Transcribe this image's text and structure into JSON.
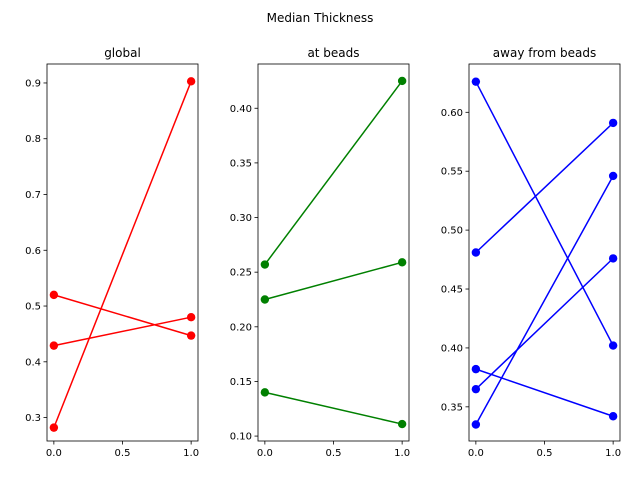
{
  "figure": {
    "suptitle": "Median Thickness"
  },
  "chart_data": [
    {
      "type": "line",
      "title": "global",
      "color": "#ff0000",
      "xlim": [
        -0.05,
        1.05
      ],
      "ylim": [
        0.258,
        0.934
      ],
      "xticks": [
        0.0,
        0.5,
        1.0
      ],
      "xtick_labels": [
        "0.0",
        "0.5",
        "1.0"
      ],
      "yticks": [
        0.3,
        0.4,
        0.5,
        0.6,
        0.7,
        0.8,
        0.9
      ],
      "ytick_labels": [
        "0.3",
        "0.4",
        "0.5",
        "0.6",
        "0.7",
        "0.8",
        "0.9"
      ],
      "series": [
        {
          "x": [
            0,
            1
          ],
          "y": [
            0.52,
            0.447
          ]
        },
        {
          "x": [
            0,
            1
          ],
          "y": [
            0.429,
            0.48
          ]
        },
        {
          "x": [
            0,
            1
          ],
          "y": [
            0.282,
            0.903
          ]
        }
      ]
    },
    {
      "type": "line",
      "title": "at beads",
      "color": "#008000",
      "xlim": [
        -0.05,
        1.05
      ],
      "ylim": [
        0.0955,
        0.4405
      ],
      "xticks": [
        0.0,
        0.5,
        1.0
      ],
      "xtick_labels": [
        "0.0",
        "0.5",
        "1.0"
      ],
      "yticks": [
        0.1,
        0.15,
        0.2,
        0.25,
        0.3,
        0.35,
        0.4
      ],
      "ytick_labels": [
        "0.10",
        "0.15",
        "0.20",
        "0.25",
        "0.30",
        "0.35",
        "0.40"
      ],
      "series": [
        {
          "x": [
            0,
            1
          ],
          "y": [
            0.257,
            0.425
          ]
        },
        {
          "x": [
            0,
            1
          ],
          "y": [
            0.225,
            0.259
          ]
        },
        {
          "x": [
            0,
            1
          ],
          "y": [
            0.14,
            0.111
          ]
        }
      ]
    },
    {
      "type": "line",
      "title": "away from beads",
      "color": "#0000ff",
      "xlim": [
        -0.05,
        1.05
      ],
      "ylim": [
        0.321,
        0.641
      ],
      "xticks": [
        0.0,
        0.5,
        1.0
      ],
      "xtick_labels": [
        "0.0",
        "0.5",
        "1.0"
      ],
      "yticks": [
        0.35,
        0.4,
        0.45,
        0.5,
        0.55,
        0.6
      ],
      "ytick_labels": [
        "0.35",
        "0.40",
        "0.45",
        "0.50",
        "0.55",
        "0.60"
      ],
      "series": [
        {
          "x": [
            0,
            1
          ],
          "y": [
            0.626,
            0.402
          ]
        },
        {
          "x": [
            0,
            1
          ],
          "y": [
            0.481,
            0.591
          ]
        },
        {
          "x": [
            0,
            1
          ],
          "y": [
            0.382,
            0.342
          ]
        },
        {
          "x": [
            0,
            1
          ],
          "y": [
            0.365,
            0.476
          ]
        },
        {
          "x": [
            0,
            1
          ],
          "y": [
            0.335,
            0.546
          ]
        }
      ]
    }
  ]
}
